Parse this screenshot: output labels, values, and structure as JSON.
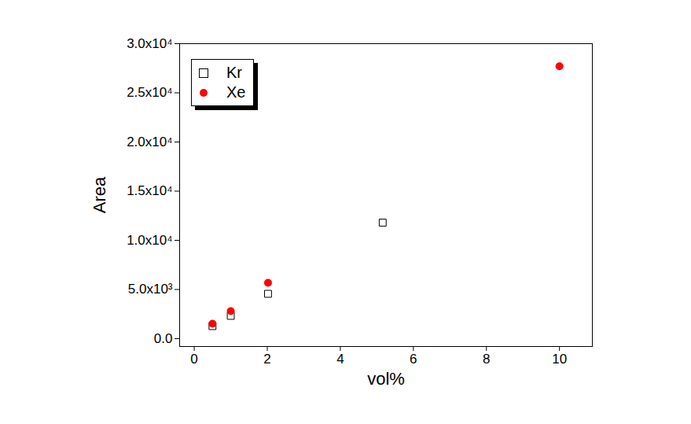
{
  "chart_data": {
    "type": "scatter",
    "x_label": "vol%",
    "y_label": "Area",
    "xlim": [
      -0.4,
      10.9
    ],
    "xticks": [
      0,
      2,
      4,
      6,
      8,
      10
    ],
    "ylim": [
      -800,
      30000
    ],
    "yticks": [
      {
        "value": 0,
        "label": "0.0"
      },
      {
        "value": 5000,
        "label": "5.0x10³"
      },
      {
        "value": 10000,
        "label": "1.0x10⁴"
      },
      {
        "value": 15000,
        "label": "1.5x10⁴"
      },
      {
        "value": 20000,
        "label": "2.0x10⁴"
      },
      {
        "value": 25000,
        "label": "2.5x10⁴"
      },
      {
        "value": 30000,
        "label": "3.0x10⁴"
      }
    ],
    "grid": false,
    "legend": "top-left",
    "series": [
      {
        "name": "Kr",
        "color": "#000000",
        "marker": "open_square",
        "x": [
          0.5,
          1.0,
          2.02,
          5.16
        ],
        "values": [
          1280,
          2320,
          4560,
          11800
        ]
      },
      {
        "name": "Xe",
        "color": "#ff0000",
        "marker": "circle",
        "x": [
          0.5,
          1.0,
          2.02,
          10.0
        ],
        "values": [
          1520,
          2800,
          5680,
          27700
        ]
      }
    ]
  }
}
